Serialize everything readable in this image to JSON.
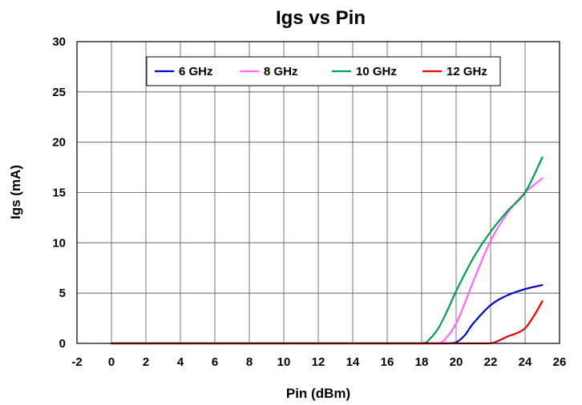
{
  "chart_data": {
    "type": "line",
    "title": "Igs vs Pin",
    "xlabel": "Pin (dBm)",
    "ylabel": "Igs (mA)",
    "xlim": [
      -2,
      26
    ],
    "ylim": [
      0,
      30
    ],
    "xticks": [
      -2,
      0,
      2,
      4,
      6,
      8,
      10,
      12,
      14,
      16,
      18,
      20,
      22,
      24,
      26
    ],
    "yticks": [
      0,
      5,
      10,
      15,
      20,
      25,
      30
    ],
    "grid": true,
    "legend_position": "top",
    "series": [
      {
        "name": "6 GHz",
        "color": "#0000cc",
        "x": [
          0,
          2,
          4,
          6,
          8,
          10,
          12,
          14,
          16,
          18,
          19,
          19.5,
          20,
          20.5,
          21,
          22,
          23,
          24,
          25
        ],
        "y": [
          0,
          0,
          0,
          0,
          0,
          0,
          0,
          0,
          0,
          0,
          0,
          0,
          0.1,
          0.8,
          2.0,
          3.8,
          4.8,
          5.4,
          5.8
        ]
      },
      {
        "name": "8 GHz",
        "color": "#ff66ff",
        "x": [
          0,
          2,
          4,
          6,
          8,
          10,
          12,
          14,
          16,
          18,
          19,
          19.5,
          20,
          20.5,
          21,
          22,
          23,
          24,
          25
        ],
        "y": [
          0,
          0,
          0,
          0,
          0,
          0,
          0,
          0,
          0,
          0,
          0,
          0.7,
          2.0,
          4.0,
          6.2,
          10.2,
          13.0,
          15.0,
          16.4
        ]
      },
      {
        "name": "10 GHz",
        "color": "#00a050",
        "x": [
          0,
          2,
          4,
          6,
          8,
          10,
          12,
          14,
          16,
          18,
          18.5,
          19,
          19.5,
          20,
          21,
          22,
          23,
          24,
          25
        ],
        "y": [
          0,
          0,
          0,
          0,
          0,
          0,
          0,
          0,
          0,
          0,
          0.5,
          1.6,
          3.3,
          5.2,
          8.5,
          11.1,
          13.2,
          15.0,
          18.5
        ]
      },
      {
        "name": "12 GHz",
        "color": "#ee0000",
        "x": [
          0,
          2,
          4,
          6,
          8,
          10,
          12,
          14,
          16,
          18,
          20,
          21,
          22,
          22.5,
          23,
          23.5,
          24,
          24.5,
          25
        ],
        "y": [
          0,
          0,
          0,
          0,
          0,
          0,
          0,
          0,
          0,
          0,
          0,
          0,
          0,
          0.3,
          0.7,
          1.0,
          1.5,
          2.7,
          4.2
        ]
      }
    ]
  }
}
